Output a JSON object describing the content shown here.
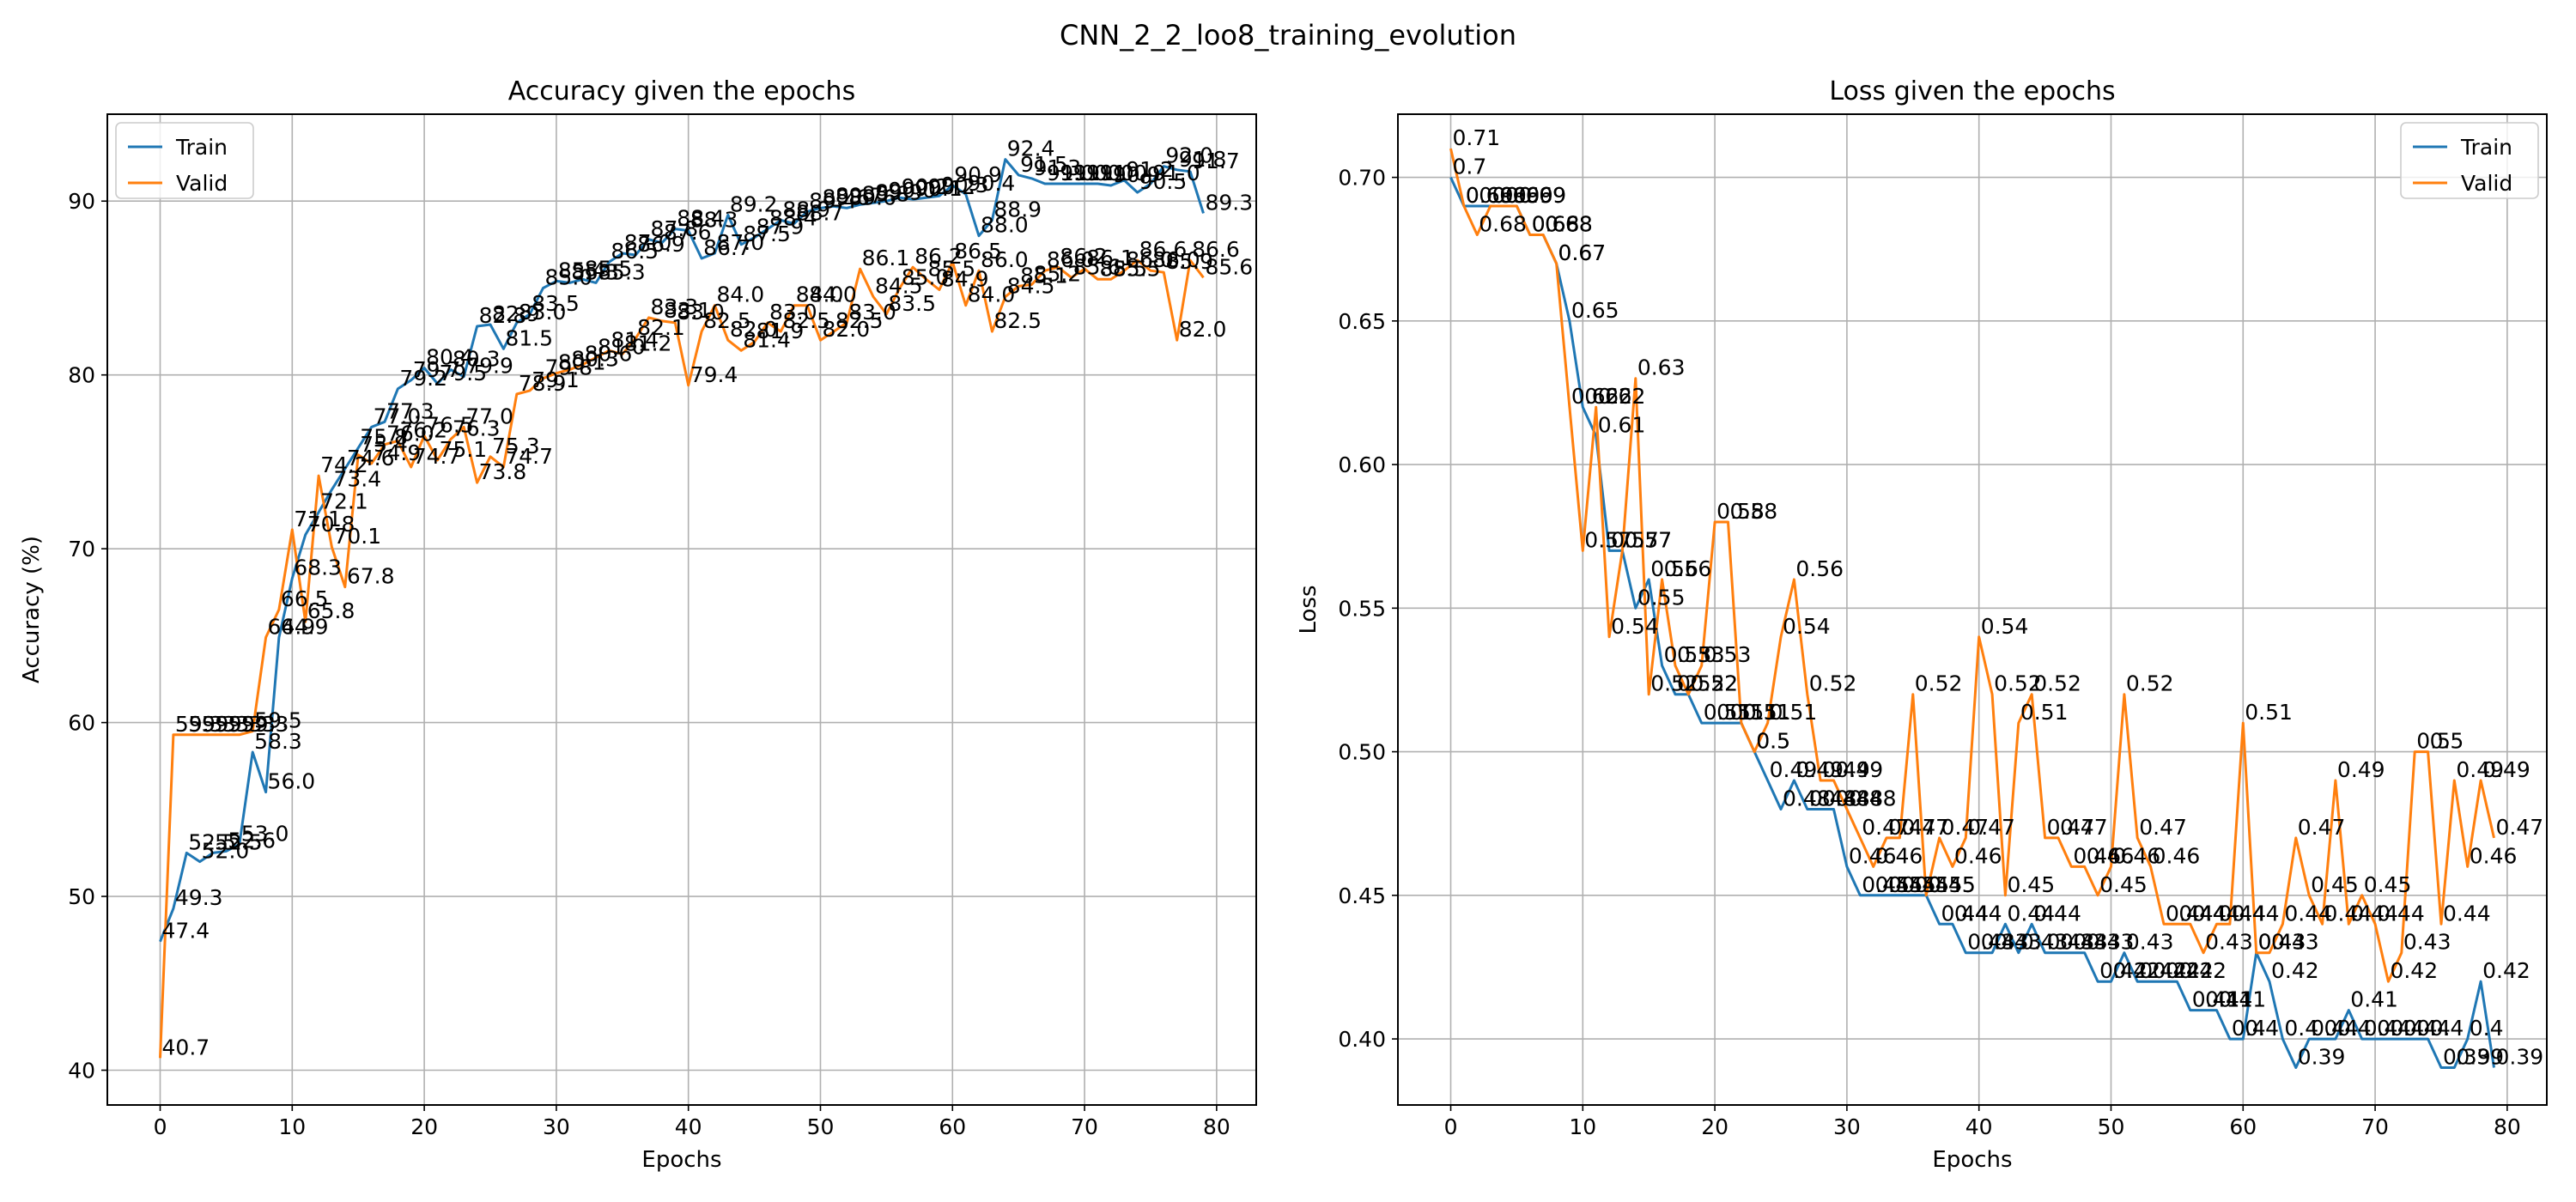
{
  "figure": {
    "suptitle": "CNN_2_2_loo8_training_evolution"
  },
  "colors": {
    "train": "#1f77b4",
    "valid": "#ff7f0e",
    "grid": "#b0b0b0",
    "axes": "#000000",
    "background": "#ffffff"
  },
  "chart_data": [
    {
      "type": "line",
      "title": "Accuracy given the epochs",
      "xlabel": "Epochs",
      "ylabel": "Accuracy (%)",
      "xlim": [
        -4,
        83
      ],
      "ylim": [
        38,
        95
      ],
      "xticks": [
        "0",
        "10",
        "20",
        "30",
        "40",
        "50",
        "60",
        "70",
        "80"
      ],
      "yticks": [
        "40",
        "50",
        "60",
        "70",
        "80",
        "90"
      ],
      "grid": true,
      "legend": "top-left",
      "x": [
        0,
        1,
        2,
        3,
        4,
        5,
        6,
        7,
        8,
        9,
        10,
        11,
        12,
        13,
        14,
        15,
        16,
        17,
        18,
        19,
        20,
        21,
        22,
        23,
        24,
        25,
        26,
        27,
        28,
        29,
        30,
        31,
        32,
        33,
        34,
        35,
        36,
        37,
        38,
        39,
        40,
        41,
        42,
        43,
        44,
        45,
        46,
        47,
        48,
        49,
        50,
        51,
        52,
        53,
        54,
        55,
        56,
        57,
        58,
        59,
        60,
        61,
        62,
        63,
        64,
        65,
        66,
        67,
        68,
        69,
        70,
        71,
        72,
        73,
        74,
        75,
        76,
        77,
        78,
        79
      ],
      "series": [
        {
          "name": "Train",
          "values": [
            47.4,
            49.3,
            52.5,
            52.0,
            52.5,
            52.6,
            53.0,
            58.3,
            56.0,
            64.9,
            68.3,
            70.8,
            72.1,
            73.4,
            74.6,
            75.8,
            77.0,
            77.3,
            79.2,
            79.7,
            80.4,
            79.5,
            80.3,
            79.9,
            82.8,
            82.9,
            81.5,
            83.0,
            83.5,
            85.0,
            85.4,
            85.3,
            85.5,
            85.3,
            86.5,
            87.0,
            86.9,
            87.8,
            87.6,
            88.4,
            88.3,
            86.7,
            87.0,
            89.2,
            87.5,
            87.9,
            88.4,
            88.9,
            88.7,
            89.4,
            89.6,
            89.7,
            89.6,
            89.8,
            89.9,
            90.0,
            90.2,
            90.1,
            90.2,
            90.3,
            90.9,
            90.4,
            88.0,
            88.9,
            92.4,
            91.5,
            91.3,
            91.0,
            91.0,
            91.0,
            91.0,
            91.0,
            90.9,
            91.2,
            90.5,
            91.0,
            92.0,
            91.8,
            91.7,
            89.3
          ],
          "labels": [
            "47.4",
            "49.3",
            "52.5",
            "52.0",
            "52.5",
            "52.6",
            "53.0",
            "58.3",
            "56.0",
            "64.9",
            "68.3",
            "70.8",
            "72.1",
            "73.4",
            "74.6",
            "75.8",
            "77.0",
            "77.3",
            "79.2",
            "79.7",
            "80.4",
            "79.5",
            "80.3",
            "79.9",
            "82.8",
            "82.9",
            "81.5",
            "83.0",
            "83.5",
            "85.0",
            "85.4",
            "85.3",
            "85.5",
            "85.3",
            "86.5",
            "87.0",
            "86.9",
            "87.8",
            "87.6",
            "88.4",
            "88.3",
            "86.7",
            "87.0",
            "89.2",
            "87.5",
            "87.9",
            "88.4",
            "88.9",
            "88.7",
            "89.4",
            "89.6",
            "89.7",
            "89.6",
            "89.8",
            "89.9",
            "90.0",
            "90.2",
            "90.1",
            "90.2",
            "90.3",
            "90.9",
            "90.4",
            "88.0",
            "88.9",
            "92.4",
            "91.5",
            "91.3",
            "91.0",
            "91.0",
            "91.0",
            "91.0",
            "91.0",
            "90.9",
            "91.2",
            "90.5",
            "91.0",
            "92.0",
            "91.8",
            "91.7",
            "89.3"
          ]
        },
        {
          "name": "Valid",
          "values": [
            40.7,
            59.3,
            59.3,
            59.3,
            59.3,
            59.3,
            59.3,
            59.5,
            64.9,
            66.5,
            71.1,
            65.8,
            74.2,
            70.1,
            67.8,
            75.4,
            74.9,
            76.0,
            76.2,
            74.7,
            76.5,
            75.1,
            76.3,
            77.0,
            73.8,
            75.3,
            74.7,
            78.9,
            79.1,
            79.8,
            80.1,
            80.3,
            80.6,
            81.0,
            81.4,
            81.2,
            82.1,
            83.3,
            83.1,
            83.0,
            79.4,
            82.5,
            84.0,
            82.0,
            81.4,
            81.9,
            83.0,
            82.5,
            84.0,
            84.0,
            82.0,
            82.5,
            83.0,
            86.1,
            84.5,
            83.5,
            85.0,
            86.2,
            85.5,
            84.9,
            86.5,
            84.0,
            86.0,
            82.5,
            84.5,
            85.1,
            85.2,
            86.0,
            86.2,
            85.6,
            86.1,
            85.5,
            85.5,
            86.0,
            86.6,
            86.0,
            85.9,
            82.0,
            86.6,
            85.6
          ],
          "labels": [
            "40.7",
            "59.3",
            "59.3",
            "59.3",
            "59.3",
            "59.3",
            "59.3",
            "59.5",
            "64.9",
            "66.5",
            "71.1",
            "65.8",
            "74.2",
            "70.1",
            "67.8",
            "75.4",
            "74.9",
            "76.0",
            "76.2",
            "74.7",
            "76.5",
            "75.1",
            "76.3",
            "77.0",
            "73.8",
            "75.3",
            "74.7",
            "78.9",
            "79.1",
            "79.8",
            "80.1",
            "80.3",
            "80.6",
            "81.0",
            "81.4",
            "81.2",
            "82.1",
            "83.3",
            "83.1",
            "83.0",
            "79.4",
            "82.5",
            "84.0",
            "82.0",
            "81.4",
            "81.9",
            "83.0",
            "82.5",
            "84.0",
            "84.0",
            "82.0",
            "82.5",
            "83.0",
            "86.1",
            "84.5",
            "83.5",
            "85.0",
            "86.2",
            "85.5",
            "84.9",
            "86.5",
            "84.0",
            "86.0",
            "82.5",
            "84.5",
            "85.1",
            "85.2",
            "86.0",
            "86.2",
            "85.6",
            "86.1",
            "85.5",
            "85.5",
            "86.0",
            "86.6",
            "86.0",
            "85.9",
            "82.0",
            "86.6",
            "85.6"
          ]
        }
      ]
    },
    {
      "type": "line",
      "title": "Loss given the epochs",
      "xlabel": "Epochs",
      "ylabel": "Loss",
      "xlim": [
        -4,
        83
      ],
      "ylim": [
        0.377,
        0.722
      ],
      "xticks": [
        "0",
        "10",
        "20",
        "30",
        "40",
        "50",
        "60",
        "70",
        "80"
      ],
      "yticks": [
        "0.40",
        "0.45",
        "0.50",
        "0.55",
        "0.60",
        "0.65",
        "0.70"
      ],
      "grid": true,
      "legend": "top-right",
      "x": [
        0,
        1,
        2,
        3,
        4,
        5,
        6,
        7,
        8,
        9,
        10,
        11,
        12,
        13,
        14,
        15,
        16,
        17,
        18,
        19,
        20,
        21,
        22,
        23,
        24,
        25,
        26,
        27,
        28,
        29,
        30,
        31,
        32,
        33,
        34,
        35,
        36,
        37,
        38,
        39,
        40,
        41,
        42,
        43,
        44,
        45,
        46,
        47,
        48,
        49,
        50,
        51,
        52,
        53,
        54,
        55,
        56,
        57,
        58,
        59,
        60,
        61,
        62,
        63,
        64,
        65,
        66,
        67,
        68,
        69,
        70,
        71,
        72,
        73,
        74,
        75,
        76,
        77,
        78,
        79
      ],
      "series": [
        {
          "name": "Train",
          "values": [
            0.7,
            0.69,
            0.69,
            0.69,
            0.69,
            0.69,
            0.68,
            0.68,
            0.67,
            0.65,
            0.62,
            0.61,
            0.57,
            0.57,
            0.55,
            0.56,
            0.53,
            0.52,
            0.52,
            0.51,
            0.51,
            0.51,
            0.51,
            0.5,
            0.49,
            0.48,
            0.49,
            0.48,
            0.48,
            0.48,
            0.46,
            0.45,
            0.45,
            0.45,
            0.45,
            0.45,
            0.45,
            0.44,
            0.44,
            0.43,
            0.43,
            0.43,
            0.44,
            0.43,
            0.44,
            0.43,
            0.43,
            0.43,
            0.43,
            0.42,
            0.42,
            0.43,
            0.42,
            0.42,
            0.42,
            0.42,
            0.41,
            0.41,
            0.41,
            0.4,
            0.4,
            0.43,
            0.42,
            0.4,
            0.39,
            0.4,
            0.4,
            0.4,
            0.41,
            0.4,
            0.4,
            0.4,
            0.4,
            0.4,
            0.4,
            0.39,
            0.39,
            0.4,
            0.42,
            0.39
          ],
          "labels": [
            "0.7",
            "0.69",
            "0.69",
            "0.69",
            "0.69",
            "0.69",
            "0.68",
            "0.68",
            "0.67",
            "0.65",
            "0.62",
            "0.61",
            "0.57",
            "0.57",
            "0.55",
            "0.56",
            "0.53",
            "0.52",
            "0.52",
            "0.51",
            "0.51",
            "0.51",
            "0.51",
            "0.5",
            "0.49",
            "0.48",
            "0.49",
            "0.48",
            "0.48",
            "0.48",
            "0.46",
            "0.45",
            "0.45",
            "0.45",
            "0.45",
            "0.45",
            "0.45",
            "0.44",
            "0.44",
            "0.43",
            "0.43",
            "0.43",
            "0.44",
            "0.43",
            "0.44",
            "0.43",
            "0.43",
            "0.43",
            "0.43",
            "0.42",
            "0.42",
            "0.43",
            "0.42",
            "0.42",
            "0.42",
            "0.42",
            "0.41",
            "0.41",
            "0.41",
            "0.4",
            "0.4",
            "0.43",
            "0.42",
            "0.4",
            "0.39",
            "0.4",
            "0.4",
            "0.4",
            "0.41",
            "0.4",
            "0.4",
            "0.4",
            "0.4",
            "0.4",
            "0.4",
            "0.39",
            "0.39",
            "0.4",
            "0.42",
            "0.39"
          ]
        },
        {
          "name": "Valid",
          "values": [
            0.71,
            0.69,
            0.68,
            0.69,
            0.69,
            0.69,
            0.68,
            0.68,
            0.67,
            0.62,
            0.57,
            0.62,
            0.54,
            0.57,
            0.63,
            0.52,
            0.56,
            0.53,
            0.52,
            0.53,
            0.58,
            0.58,
            0.51,
            0.5,
            0.51,
            0.54,
            0.56,
            0.52,
            0.49,
            0.49,
            0.48,
            0.47,
            0.46,
            0.47,
            0.47,
            0.52,
            0.45,
            0.47,
            0.46,
            0.47,
            0.54,
            0.52,
            0.45,
            0.51,
            0.52,
            0.47,
            0.47,
            0.46,
            0.46,
            0.45,
            0.46,
            0.52,
            0.47,
            0.46,
            0.44,
            0.44,
            0.44,
            0.43,
            0.44,
            0.44,
            0.51,
            0.43,
            0.43,
            0.44,
            0.47,
            0.45,
            0.44,
            0.49,
            0.44,
            0.45,
            0.44,
            0.42,
            0.43,
            0.5,
            0.5,
            0.44,
            0.49,
            0.46,
            0.49,
            0.47
          ],
          "labels": [
            "0.71",
            "0.69",
            "0.68",
            "0.69",
            "0.69",
            "0.69",
            "0.68",
            "0.68",
            "0.67",
            "0.62",
            "0.57",
            "0.62",
            "0.54",
            "0.57",
            "0.63",
            "0.52",
            "0.56",
            "0.53",
            "0.52",
            "0.53",
            "0.58",
            "0.58",
            "0.51",
            "0.5",
            "0.51",
            "0.54",
            "0.56",
            "0.52",
            "0.49",
            "0.49",
            "0.48",
            "0.47",
            "0.46",
            "0.47",
            "0.47",
            "0.52",
            "0.45",
            "0.47",
            "0.46",
            "0.47",
            "0.54",
            "0.52",
            "0.45",
            "0.51",
            "0.52",
            "0.47",
            "0.47",
            "0.46",
            "0.46",
            "0.45",
            "0.46",
            "0.52",
            "0.47",
            "0.46",
            "0.44",
            "0.44",
            "0.44",
            "0.43",
            "0.44",
            "0.44",
            "0.51",
            "0.43",
            "0.43",
            "0.44",
            "0.47",
            "0.45",
            "0.44",
            "0.49",
            "0.44",
            "0.45",
            "0.44",
            "0.42",
            "0.43",
            "0.5",
            "0.5",
            "0.44",
            "0.49",
            "0.46",
            "0.49",
            "0.47"
          ]
        }
      ]
    }
  ]
}
